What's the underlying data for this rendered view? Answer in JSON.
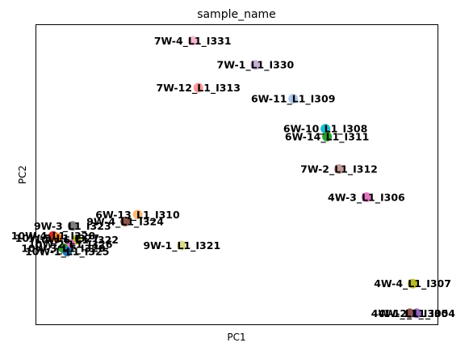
{
  "chart_data": {
    "type": "scatter",
    "title": "sample_name",
    "xlabel": "PC1",
    "ylabel": "PC2",
    "xlim": [
      0,
      100
    ],
    "ylim": [
      0,
      100
    ],
    "grid": false,
    "legend": "on data",
    "points": [
      {
        "label": "7W-4_L1_I331",
        "x": 39.0,
        "y": 94.6,
        "color": "#f7b6d2"
      },
      {
        "label": "7W-1_L1_I330",
        "x": 54.6,
        "y": 86.6,
        "color": "#c5b0d5"
      },
      {
        "label": "7W-12_L1_I313",
        "x": 40.4,
        "y": 79.0,
        "color": "#ff9896"
      },
      {
        "label": "6W-11_L1_I309",
        "x": 64.0,
        "y": 75.3,
        "color": "#aec7e8"
      },
      {
        "label": "6W-10_L1_I308",
        "x": 72.0,
        "y": 65.3,
        "color": "#17becf"
      },
      {
        "label": "6W-14_L1_I311",
        "x": 72.4,
        "y": 62.7,
        "color": "#2ca02c"
      },
      {
        "label": "7W-2_L1_I312",
        "x": 75.4,
        "y": 51.9,
        "color": "#c49c94"
      },
      {
        "label": "4W-3_L1_I306",
        "x": 82.2,
        "y": 42.5,
        "color": "#e377c2"
      },
      {
        "label": "6W-13_L1_I310",
        "x": 25.3,
        "y": 36.7,
        "color": "#ffbb78"
      },
      {
        "label": "9W-4_L1_I324",
        "x": 22.2,
        "y": 34.4,
        "color": "#8c564b"
      },
      {
        "label": "9W-3_L1_I323",
        "x": 9.1,
        "y": 32.9,
        "color": "#7f7f7f"
      },
      {
        "label": "10W-4_L1_I328",
        "x": 4.3,
        "y": 29.6,
        "color": "#d62728"
      },
      {
        "label": "10W-5_L1_I327",
        "x": 5.3,
        "y": 28.9,
        "color": "#ff7f0e"
      },
      {
        "label": "10W-6_L1_I322",
        "x": 10.1,
        "y": 28.3,
        "color": "#bcbd22"
      },
      {
        "label": "10W-2_L1_I326",
        "x": 8.6,
        "y": 26.8,
        "color": "#e377c2"
      },
      {
        "label": "10W-3_L1_I329",
        "x": 6.8,
        "y": 25.5,
        "color": "#2ca02c"
      },
      {
        "label": "10W-1_L1_I325",
        "x": 7.8,
        "y": 24.4,
        "color": "#1f77b4"
      },
      {
        "label": "9W-1_L1_I321",
        "x": 36.3,
        "y": 26.4,
        "color": "#dbdb8d"
      },
      {
        "label": "4W-4_L1_I307",
        "x": 93.7,
        "y": 13.7,
        "color": "#bcbd22"
      },
      {
        "label": "4W-1_L1_I305",
        "x": 93.0,
        "y": 3.8,
        "color": "#8c564b"
      },
      {
        "label": "4W-2_L1_I304",
        "x": 94.7,
        "y": 3.8,
        "color": "#9467bd"
      }
    ]
  }
}
